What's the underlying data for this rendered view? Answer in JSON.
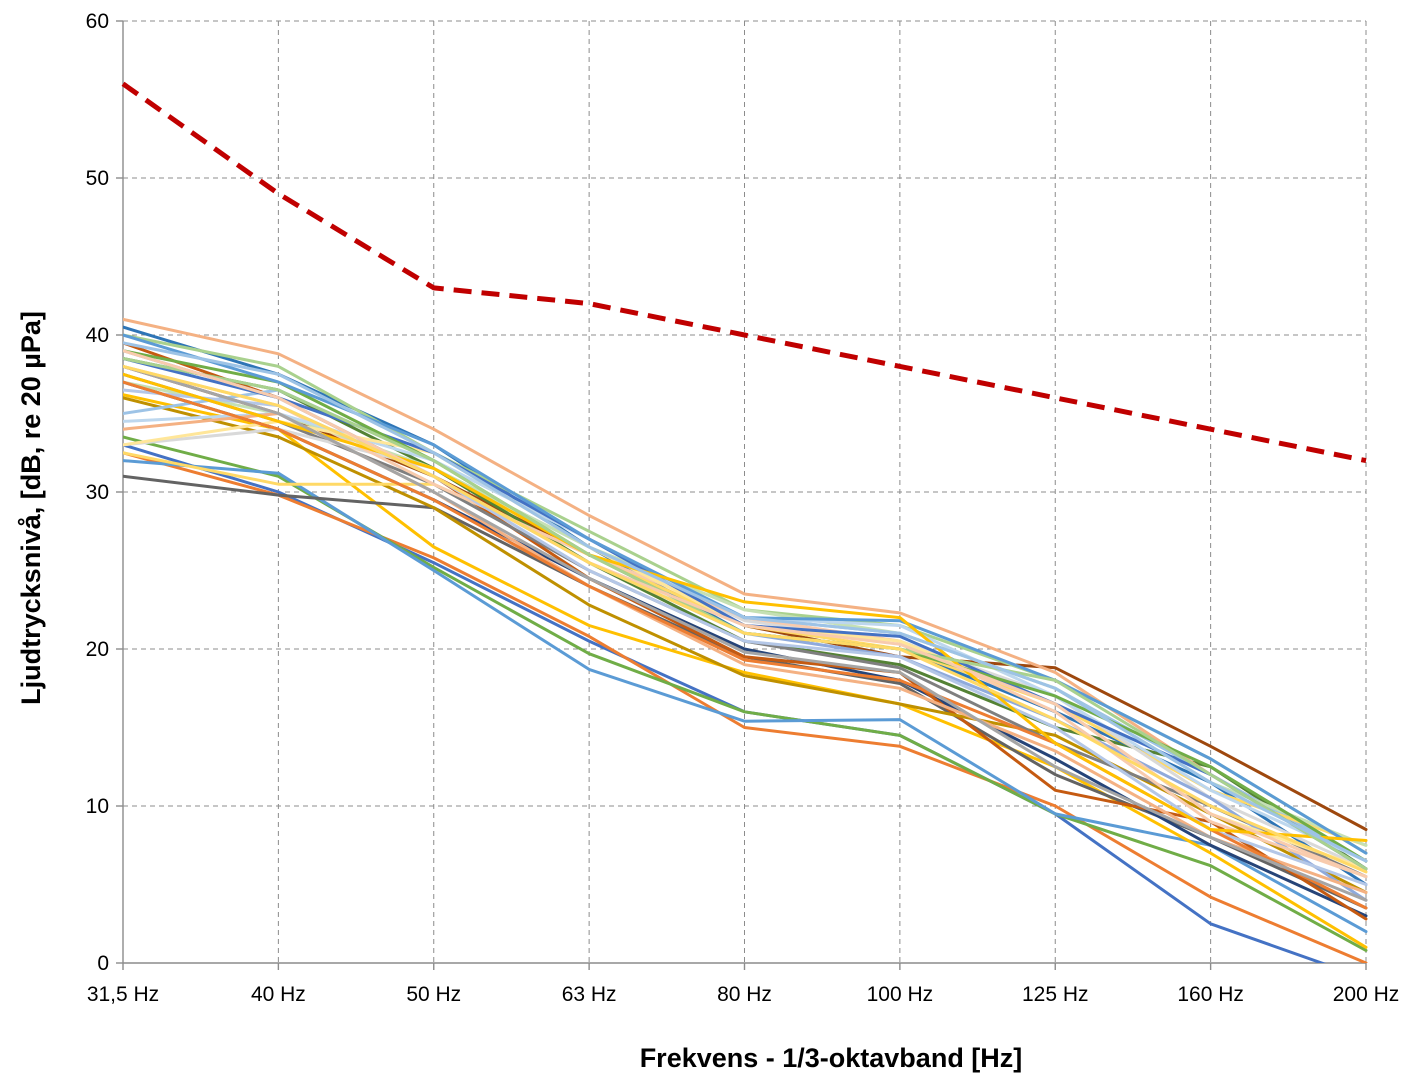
{
  "chart_data": {
    "type": "line",
    "xlabel": "Frekvens - 1/3-oktavband [Hz]",
    "ylabel": "Ljudtrycksnivå, [dB, re 20 µPa]",
    "categories": [
      "31,5 Hz",
      "40 Hz",
      "50 Hz",
      "63 Hz",
      "80 Hz",
      "100 Hz",
      "125 Hz",
      "160 Hz",
      "200 Hz"
    ],
    "ylim": [
      0,
      60
    ],
    "yticks": [
      0,
      10,
      20,
      30,
      40,
      50,
      60
    ],
    "grid": true,
    "legend": "none",
    "limit_series": {
      "values": [
        56,
        49,
        43,
        42,
        40,
        38,
        36,
        34,
        32
      ],
      "color": "#c00000",
      "style": "dashed"
    },
    "series": [
      {
        "color": "#4472c4",
        "values": [
          33.0,
          30.0,
          25.5,
          20.5,
          16.0,
          14.5,
          9.5,
          2.5,
          -1.0
        ]
      },
      {
        "color": "#ed7d31",
        "values": [
          32.5,
          29.8,
          25.8,
          20.8,
          15.0,
          13.8,
          10.0,
          4.2,
          0.0
        ]
      },
      {
        "color": "#70ad47",
        "values": [
          33.5,
          31.0,
          25.2,
          19.7,
          16.0,
          14.5,
          9.5,
          6.2,
          0.8
        ]
      },
      {
        "color": "#5b9bd5",
        "values": [
          32.0,
          31.2,
          25.0,
          18.7,
          15.4,
          15.5,
          9.5,
          7.5,
          2.0
        ]
      },
      {
        "color": "#ffc000",
        "values": [
          36.2,
          34.0,
          26.5,
          21.5,
          18.5,
          16.5,
          12.5,
          7.0,
          1.0
        ]
      },
      {
        "color": "#636363",
        "values": [
          31.0,
          29.8,
          29.0,
          24.0,
          19.5,
          17.8,
          12.0,
          8.0,
          3.5
        ]
      },
      {
        "color": "#9e480e",
        "values": [
          38.0,
          35.0,
          31.0,
          26.0,
          21.5,
          19.5,
          18.8,
          13.8,
          8.5
        ]
      },
      {
        "color": "#264478",
        "values": [
          37.0,
          34.0,
          29.5,
          24.5,
          20.0,
          18.0,
          13.0,
          7.5,
          3.0
        ]
      },
      {
        "color": "#c55a11",
        "values": [
          39.5,
          36.0,
          31.0,
          24.5,
          19.5,
          18.5,
          11.0,
          9.0,
          2.8
        ]
      },
      {
        "color": "#548235",
        "values": [
          38.5,
          36.5,
          31.5,
          25.5,
          20.5,
          19.0,
          15.0,
          12.5,
          6.0
        ]
      },
      {
        "color": "#2e75b6",
        "values": [
          40.5,
          37.5,
          33.0,
          26.5,
          21.0,
          20.0,
          16.0,
          11.5,
          5.0
        ]
      },
      {
        "color": "#bf9000",
        "values": [
          36.0,
          33.5,
          29.0,
          22.8,
          18.3,
          16.5,
          14.5,
          9.5,
          4.5
        ]
      },
      {
        "color": "#7f7f7f",
        "values": [
          37.5,
          34.5,
          30.5,
          25.0,
          20.5,
          18.8,
          14.0,
          10.0,
          5.5
        ]
      },
      {
        "color": "#f4b183",
        "values": [
          41.0,
          38.8,
          34.0,
          28.5,
          23.5,
          22.3,
          18.5,
          12.0,
          6.5
        ]
      },
      {
        "color": "#a9d18e",
        "values": [
          40.0,
          38.0,
          32.5,
          27.5,
          22.5,
          21.5,
          18.0,
          13.0,
          7.0
        ]
      },
      {
        "color": "#9dc3e6",
        "values": [
          35.0,
          36.5,
          32.0,
          27.0,
          22.0,
          21.0,
          17.5,
          12.0,
          6.5
        ]
      },
      {
        "color": "#ffd966",
        "values": [
          32.5,
          30.5,
          30.5,
          26.0,
          21.5,
          20.0,
          16.5,
          11.0,
          7.5
        ]
      },
      {
        "color": "#d9d9d9",
        "values": [
          33.0,
          34.0,
          31.5,
          26.5,
          21.8,
          20.5,
          17.0,
          10.5,
          6.0
        ]
      },
      {
        "color": "#8faadc",
        "values": [
          39.0,
          36.0,
          31.0,
          25.5,
          21.0,
          19.5,
          15.5,
          10.5,
          4.0
        ]
      },
      {
        "color": "#f8cbad",
        "values": [
          38.0,
          35.5,
          30.5,
          26.0,
          22.0,
          20.5,
          16.0,
          9.0,
          5.5
        ]
      },
      {
        "color": "#c5e0b4",
        "values": [
          37.0,
          35.0,
          31.5,
          26.5,
          22.5,
          21.0,
          17.5,
          11.5,
          7.5
        ]
      },
      {
        "color": "#bdd7ee",
        "values": [
          34.5,
          35.0,
          32.0,
          27.0,
          22.0,
          21.5,
          17.0,
          11.0,
          6.5
        ]
      },
      {
        "color": "#ffe699",
        "values": [
          33.0,
          34.5,
          32.5,
          26.5,
          21.5,
          20.5,
          16.5,
          9.5,
          6.0
        ]
      },
      {
        "color": "#b4c7e7",
        "values": [
          36.5,
          35.5,
          31.0,
          25.0,
          20.5,
          19.5,
          15.0,
          8.5,
          5.0
        ]
      },
      {
        "color": "#f4b183",
        "values": [
          34.0,
          35.0,
          30.0,
          24.0,
          19.0,
          17.5,
          13.5,
          8.0,
          4.5
        ]
      },
      {
        "color": "#4472c4",
        "values": [
          38.5,
          36.0,
          32.5,
          27.0,
          21.5,
          20.8,
          16.5,
          12.0,
          6.0
        ]
      },
      {
        "color": "#ed7d31",
        "values": [
          37.0,
          34.0,
          29.5,
          24.0,
          19.3,
          18.0,
          14.0,
          8.5,
          3.5
        ]
      },
      {
        "color": "#70ad47",
        "values": [
          39.0,
          37.0,
          32.0,
          26.0,
          21.0,
          20.0,
          17.0,
          12.5,
          6.5
        ]
      },
      {
        "color": "#5b9bd5",
        "values": [
          40.0,
          37.0,
          33.0,
          27.0,
          22.0,
          21.8,
          18.0,
          13.0,
          7.0
        ]
      },
      {
        "color": "#ffc000",
        "values": [
          37.5,
          34.5,
          31.5,
          26.0,
          23.0,
          22.0,
          14.0,
          8.5,
          7.8
        ]
      },
      {
        "color": "#a5a5a5",
        "values": [
          38.0,
          35.0,
          30.0,
          24.5,
          19.8,
          18.5,
          12.5,
          8.0,
          4.0
        ]
      },
      {
        "color": "#a9d18e",
        "values": [
          38.5,
          36.5,
          32.0,
          26.0,
          21.0,
          20.0,
          18.0,
          12.0,
          6.0
        ]
      },
      {
        "color": "#9dc3e6",
        "values": [
          39.5,
          37.5,
          32.5,
          26.5,
          22.0,
          21.0,
          17.5,
          11.5,
          6.5
        ]
      },
      {
        "color": "#f8cbad",
        "values": [
          39.0,
          36.0,
          31.0,
          25.5,
          21.5,
          20.3,
          16.5,
          9.5,
          5.5
        ]
      },
      {
        "color": "#ffd966",
        "values": [
          38.0,
          35.5,
          31.0,
          25.5,
          21.0,
          20.0,
          15.5,
          10.0,
          5.8
        ]
      }
    ]
  }
}
